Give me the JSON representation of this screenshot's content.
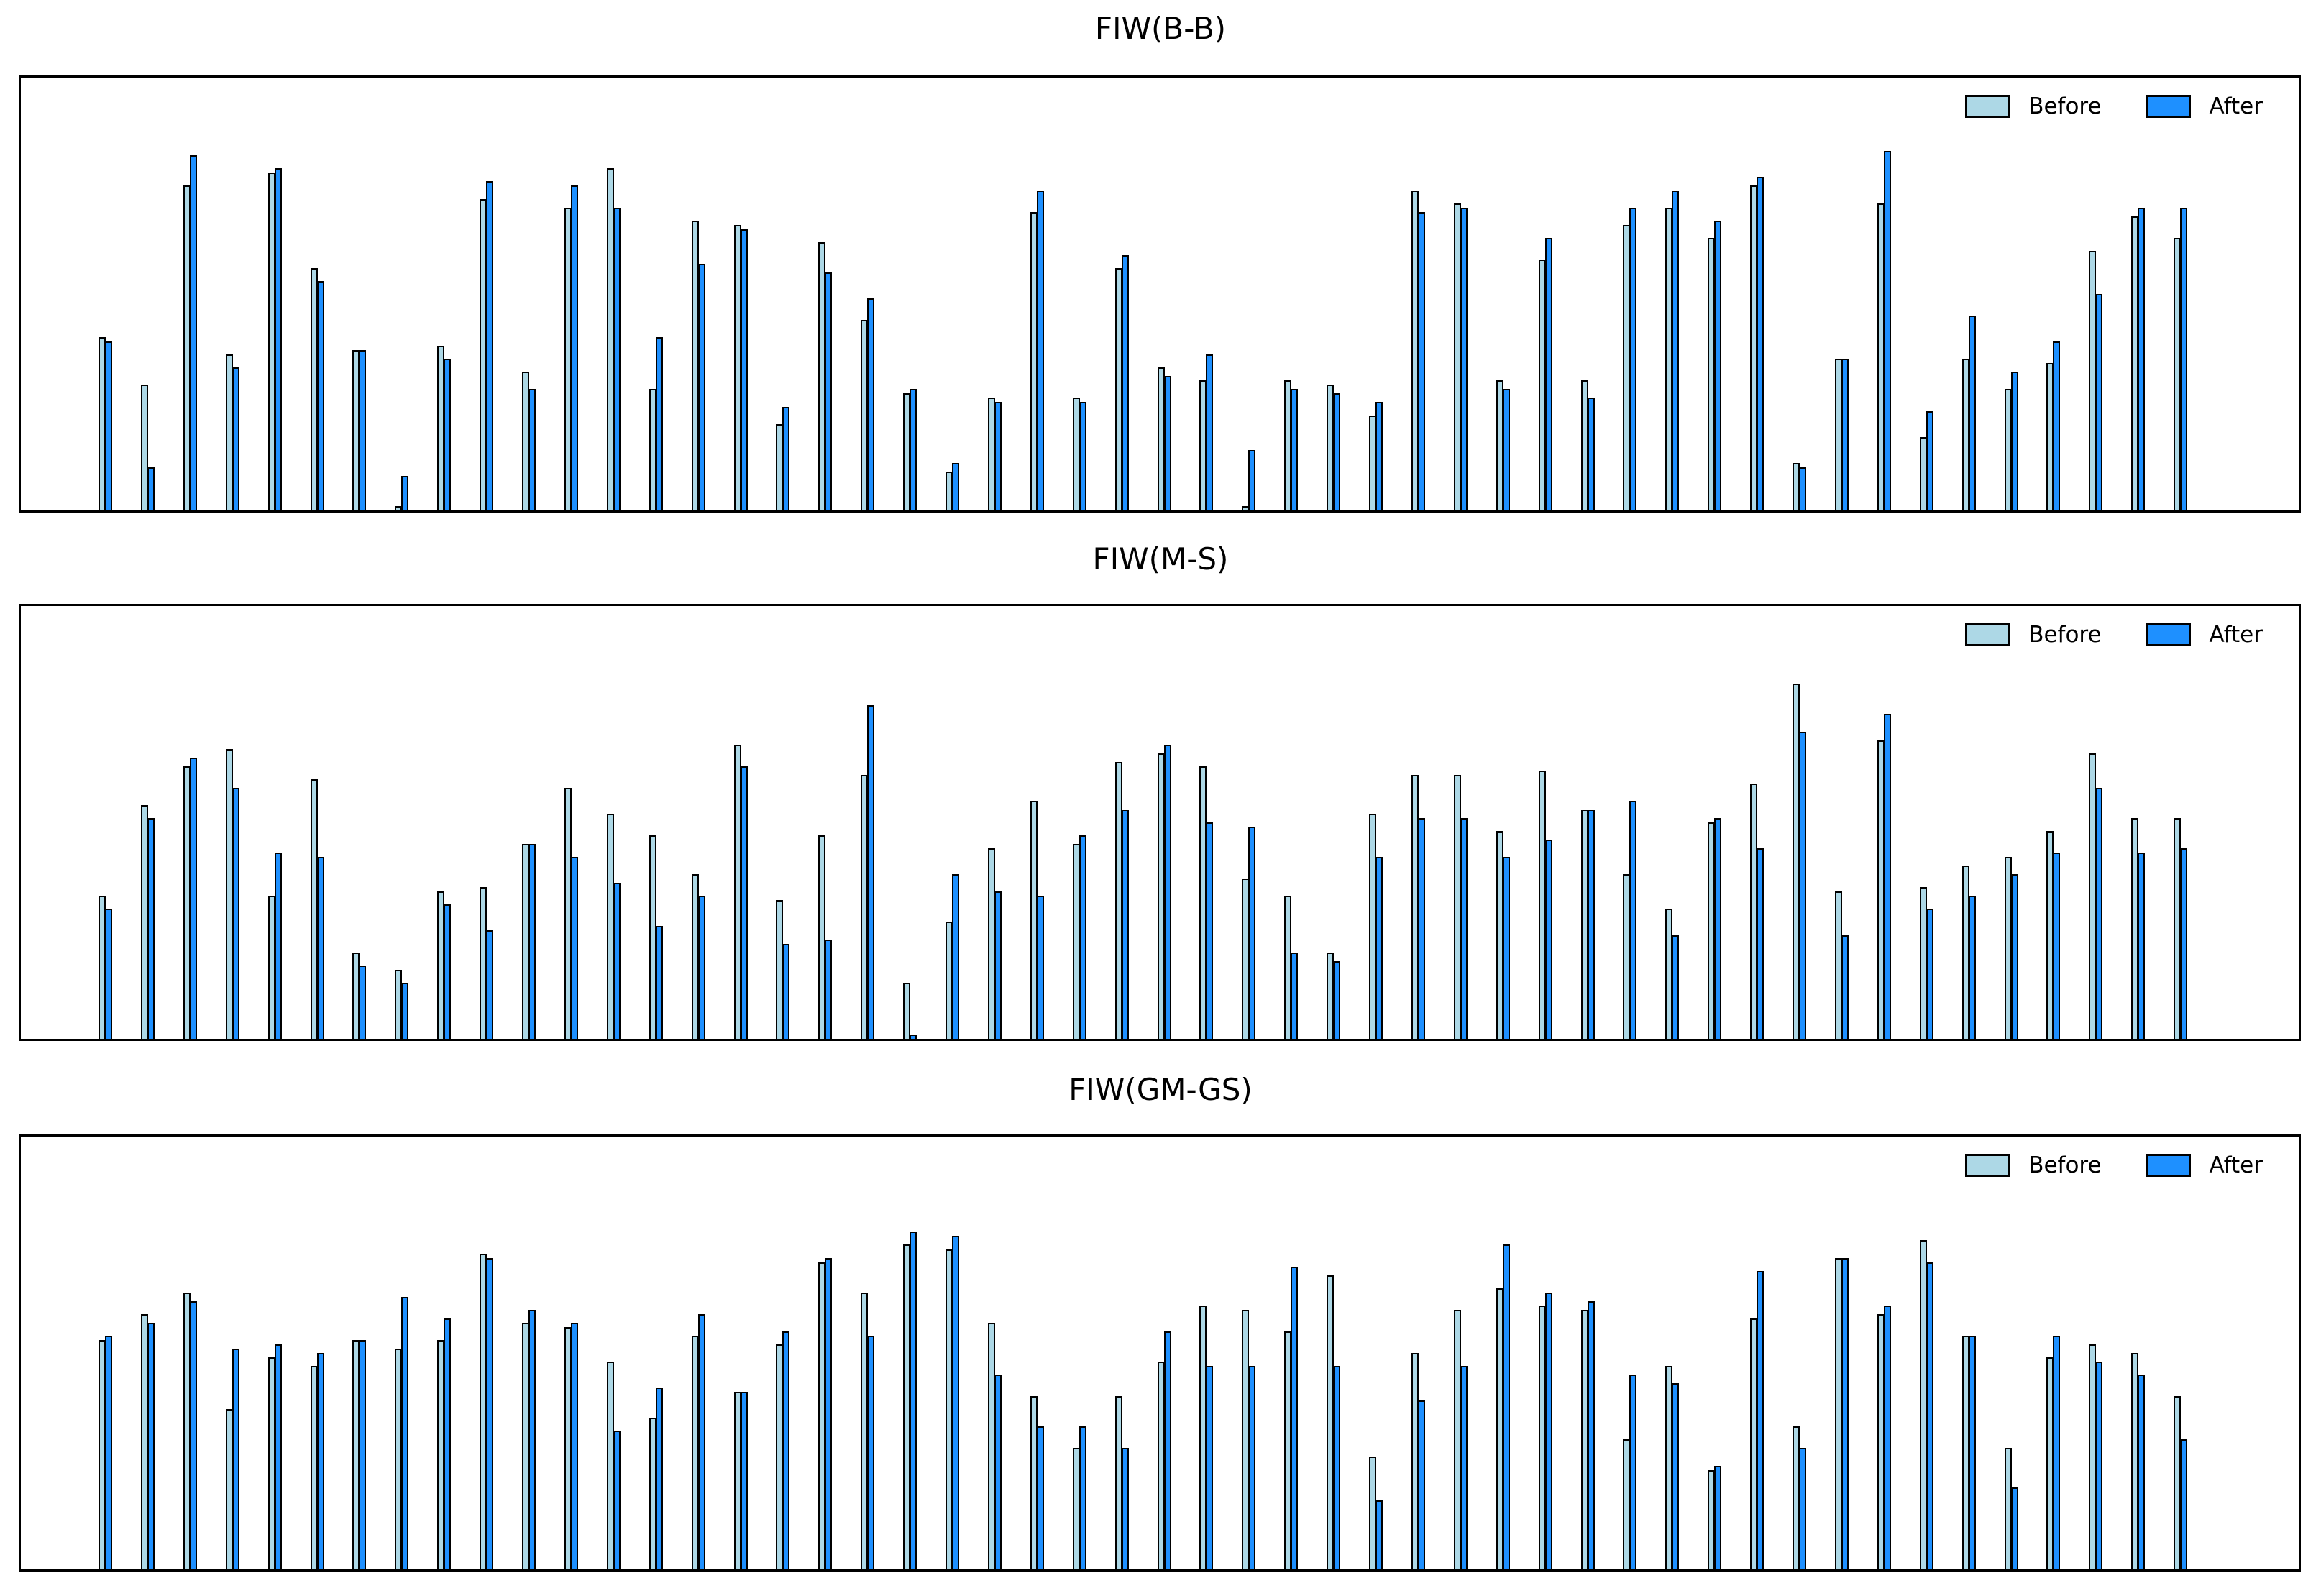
{
  "figure": {
    "background": "#ffffff",
    "frame_color": "#000000",
    "legend": {
      "before_label": "Before",
      "after_label": "After"
    }
  },
  "chart_data": [
    {
      "type": "bar",
      "title": "FIW(B-B)",
      "xlabel": "",
      "ylabel": "",
      "ylim": [
        0,
        1
      ],
      "grid": false,
      "x_tick_labels_visible": false,
      "y_tick_labels_visible": false,
      "legend_position": "upper right",
      "bar_edge_color": "#000000",
      "series": [
        {
          "name": "Before",
          "color": "#ADD8E6",
          "values": [
            0.4,
            0.29,
            0.75,
            0.36,
            0.78,
            0.56,
            0.37,
            0.01,
            0.38,
            0.72,
            0.32,
            0.7,
            0.79,
            0.28,
            0.67,
            0.66,
            0.2,
            0.62,
            0.44,
            0.27,
            0.09,
            0.26,
            0.69,
            0.26,
            0.56,
            0.33,
            0.3,
            0.01,
            0.3,
            0.29,
            0.22,
            0.74,
            0.71,
            0.3,
            0.58,
            0.3,
            0.66,
            0.7,
            0.63,
            0.75,
            0.11,
            0.35,
            0.71,
            0.17,
            0.35,
            0.28,
            0.34,
            0.6,
            0.68,
            0.63
          ]
        },
        {
          "name": "After",
          "color": "#1E90FF",
          "values": [
            0.39,
            0.1,
            0.82,
            0.33,
            0.79,
            0.53,
            0.37,
            0.08,
            0.35,
            0.76,
            0.28,
            0.75,
            0.7,
            0.4,
            0.57,
            0.65,
            0.24,
            0.55,
            0.49,
            0.28,
            0.11,
            0.25,
            0.74,
            0.25,
            0.59,
            0.31,
            0.36,
            0.14,
            0.28,
            0.27,
            0.25,
            0.69,
            0.7,
            0.28,
            0.63,
            0.26,
            0.7,
            0.74,
            0.67,
            0.77,
            0.1,
            0.35,
            0.83,
            0.23,
            0.45,
            0.32,
            0.39,
            0.5,
            0.7,
            0.7
          ]
        }
      ]
    },
    {
      "type": "bar",
      "title": "FIW(M-S)",
      "xlabel": "",
      "ylabel": "",
      "ylim": [
        0,
        1
      ],
      "grid": false,
      "x_tick_labels_visible": false,
      "y_tick_labels_visible": false,
      "legend_position": "upper right",
      "bar_edge_color": "#000000",
      "series": [
        {
          "name": "Before",
          "color": "#ADD8E6",
          "values": [
            0.33,
            0.54,
            0.63,
            0.67,
            0.33,
            0.6,
            0.2,
            0.16,
            0.34,
            0.35,
            0.45,
            0.58,
            0.52,
            0.47,
            0.38,
            0.68,
            0.32,
            0.47,
            0.61,
            0.13,
            0.27,
            0.44,
            0.55,
            0.45,
            0.64,
            0.66,
            0.63,
            0.37,
            0.33,
            0.2,
            0.52,
            0.61,
            0.61,
            0.48,
            0.62,
            0.53,
            0.38,
            0.3,
            0.5,
            0.59,
            0.82,
            0.34,
            0.69,
            0.35,
            0.4,
            0.42,
            0.48,
            0.66,
            0.51,
            0.51
          ]
        },
        {
          "name": "After",
          "color": "#1E90FF",
          "values": [
            0.3,
            0.51,
            0.65,
            0.58,
            0.43,
            0.42,
            0.17,
            0.13,
            0.31,
            0.25,
            0.45,
            0.42,
            0.36,
            0.26,
            0.33,
            0.63,
            0.22,
            0.23,
            0.77,
            0.01,
            0.38,
            0.34,
            0.33,
            0.47,
            0.53,
            0.68,
            0.5,
            0.49,
            0.2,
            0.18,
            0.42,
            0.51,
            0.51,
            0.42,
            0.46,
            0.53,
            0.55,
            0.24,
            0.51,
            0.44,
            0.71,
            0.24,
            0.75,
            0.3,
            0.33,
            0.38,
            0.43,
            0.58,
            0.43,
            0.44
          ]
        }
      ]
    },
    {
      "type": "bar",
      "title": "FIW(GM-GS)",
      "xlabel": "",
      "ylabel": "",
      "ylim": [
        0,
        1
      ],
      "grid": false,
      "x_tick_labels_visible": false,
      "y_tick_labels_visible": false,
      "legend_position": "upper right",
      "bar_edge_color": "#000000",
      "series": [
        {
          "name": "Before",
          "color": "#ADD8E6",
          "values": [
            0.53,
            0.59,
            0.64,
            0.37,
            0.49,
            0.47,
            0.53,
            0.51,
            0.53,
            0.73,
            0.57,
            0.56,
            0.48,
            0.35,
            0.54,
            0.41,
            0.52,
            0.71,
            0.64,
            0.75,
            0.74,
            0.57,
            0.4,
            0.28,
            0.4,
            0.48,
            0.61,
            0.6,
            0.55,
            0.68,
            0.26,
            0.5,
            0.6,
            0.65,
            0.61,
            0.6,
            0.3,
            0.47,
            0.23,
            0.58,
            0.33,
            0.72,
            0.59,
            0.76,
            0.54,
            0.28,
            0.49,
            0.52,
            0.5,
            0.4
          ]
        },
        {
          "name": "After",
          "color": "#1E90FF",
          "values": [
            0.54,
            0.57,
            0.62,
            0.51,
            0.52,
            0.5,
            0.53,
            0.63,
            0.58,
            0.72,
            0.6,
            0.57,
            0.32,
            0.42,
            0.59,
            0.41,
            0.55,
            0.72,
            0.54,
            0.78,
            0.77,
            0.45,
            0.33,
            0.33,
            0.28,
            0.55,
            0.47,
            0.47,
            0.7,
            0.47,
            0.16,
            0.39,
            0.47,
            0.75,
            0.64,
            0.62,
            0.45,
            0.43,
            0.24,
            0.69,
            0.28,
            0.72,
            0.61,
            0.71,
            0.54,
            0.19,
            0.54,
            0.48,
            0.45,
            0.3
          ]
        }
      ]
    }
  ]
}
